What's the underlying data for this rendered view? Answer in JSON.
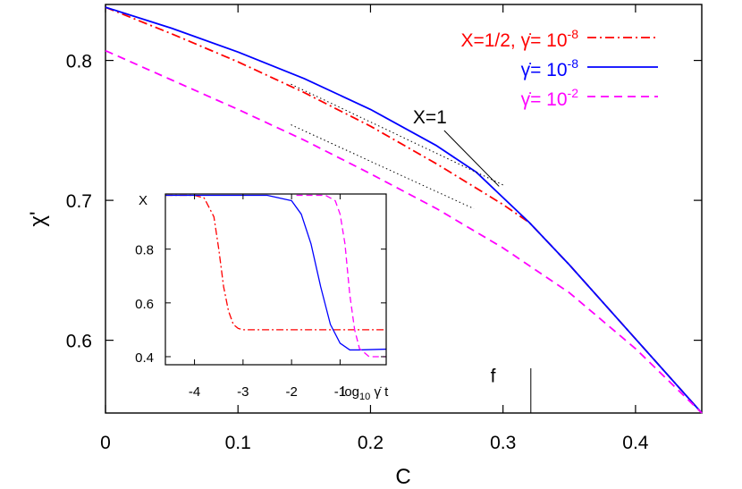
{
  "chart_data": [
    {
      "type": "line",
      "xlabel": "C",
      "ylabel": "χ'",
      "xlim": [
        0,
        0.45
      ],
      "ylim": [
        0.548,
        0.84
      ],
      "xticks": [
        "0",
        "0.1",
        "0.2",
        "0.3",
        "0.4"
      ],
      "xtick_values": [
        0,
        0.1,
        0.2,
        0.3,
        0.4
      ],
      "yticks": [
        "0.6",
        "0.7",
        "0.8"
      ],
      "ytick_values": [
        0.6,
        0.7,
        0.8
      ],
      "grid": false,
      "legend_position": "top-right",
      "series": [
        {
          "label_main": "X=1/2, ",
          "label_rate": "= 10",
          "label_exp": "-8",
          "color": "#ff0000",
          "dash": "dash-dot",
          "x": [
            0,
            0.05,
            0.1,
            0.15,
            0.2,
            0.25,
            0.3,
            0.32,
            0.35,
            0.4,
            0.45
          ],
          "y": [
            0.838,
            0.819,
            0.799,
            0.777,
            0.753,
            0.726,
            0.697,
            0.684,
            0.654,
            0.601,
            0.548
          ]
        },
        {
          "label_main": "",
          "label_rate": "= 10",
          "label_exp": "-8",
          "color": "#0000ff",
          "dash": "solid",
          "x": [
            0,
            0.05,
            0.1,
            0.15,
            0.2,
            0.25,
            0.28,
            0.3,
            0.32,
            0.35,
            0.4,
            0.45
          ],
          "y": [
            0.838,
            0.823,
            0.806,
            0.787,
            0.765,
            0.739,
            0.72,
            0.702,
            0.684,
            0.654,
            0.601,
            0.548
          ]
        },
        {
          "label_main": "",
          "label_rate": "= 10",
          "label_exp": "-2",
          "color": "#ff00ff",
          "dash": "dashed",
          "x": [
            0,
            0.05,
            0.1,
            0.15,
            0.2,
            0.25,
            0.3,
            0.35,
            0.4,
            0.45
          ],
          "y": [
            0.807,
            0.786,
            0.765,
            0.743,
            0.719,
            0.694,
            0.666,
            0.634,
            0.594,
            0.548
          ]
        }
      ],
      "reference_lines": [
        {
          "color": "#000000",
          "dash": "dotted",
          "x": [
            0.14,
            0.3
          ],
          "y": [
            0.783,
            0.711
          ]
        },
        {
          "color": "#000000",
          "dash": "dotted",
          "x": [
            0.14,
            0.278
          ],
          "y": [
            0.754,
            0.694
          ]
        }
      ],
      "annotations": [
        {
          "text": "X=1",
          "x": 0.232,
          "y": 0.755,
          "pointer_to": [
            0.297,
            0.71
          ]
        },
        {
          "text": "f",
          "x": 0.3,
          "y": 0.57,
          "vline_x": 0.321,
          "vline_y": [
            0.548,
            0.58
          ]
        }
      ]
    },
    {
      "type": "line",
      "inset": true,
      "ylabel": "X",
      "xlabel_prefix": "log",
      "xlabel_sub": "10",
      "xlabel_suffix": "t",
      "xlim": [
        -4.6,
        -0.05
      ],
      "ylim": [
        0.37,
        1.005
      ],
      "xticks": [
        "-4",
        "-3",
        "-2",
        "-1"
      ],
      "xtick_values": [
        -4,
        -3,
        -2,
        -1
      ],
      "yticks": [
        "0.4",
        "0.6",
        "0.8"
      ],
      "ytick_values": [
        0.4,
        0.6,
        0.8
      ],
      "series": [
        {
          "color": "#ff0000",
          "dash": "dash-dot",
          "x": [
            -4.6,
            -4.0,
            -3.8,
            -3.6,
            -3.5,
            -3.4,
            -3.3,
            -3.2,
            -3.1,
            -3.0,
            -2.0,
            -0.05
          ],
          "y": [
            1.0,
            1.0,
            0.99,
            0.92,
            0.8,
            0.66,
            0.57,
            0.52,
            0.505,
            0.5,
            0.5,
            0.5
          ]
        },
        {
          "color": "#0000ff",
          "dash": "solid",
          "x": [
            -4.6,
            -2.5,
            -2.0,
            -1.8,
            -1.6,
            -1.4,
            -1.2,
            -1.0,
            -0.8,
            -0.6,
            -0.05
          ],
          "y": [
            1.0,
            1.0,
            0.98,
            0.93,
            0.82,
            0.66,
            0.52,
            0.45,
            0.425,
            0.425,
            0.428
          ]
        },
        {
          "color": "#ff00ff",
          "dash": "dashed",
          "x": [
            -1.9,
            -1.3,
            -1.1,
            -1.0,
            -0.9,
            -0.8,
            -0.7,
            -0.6,
            -0.4,
            -0.05
          ],
          "y": [
            1.0,
            1.0,
            0.98,
            0.93,
            0.82,
            0.63,
            0.5,
            0.43,
            0.4,
            0.4
          ]
        }
      ]
    }
  ]
}
